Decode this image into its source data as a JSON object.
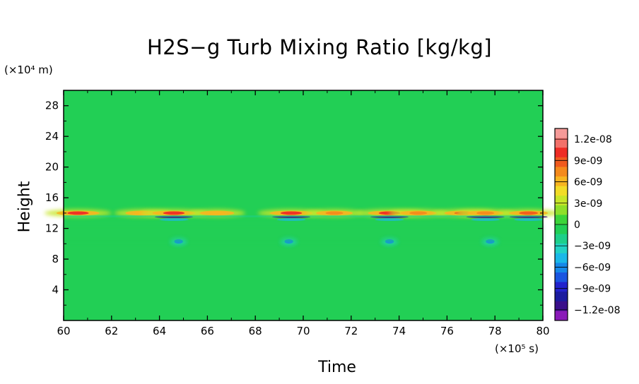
{
  "chart_data": {
    "type": "heatmap",
    "title": "H2S−g Turb Mixing Ratio [kg/kg]",
    "xlabel": "Time",
    "ylabel": "Height",
    "x_unit_label": "(×10⁵ s)",
    "y_unit_label": "(×10⁴ m)",
    "xlim": [
      60,
      80
    ],
    "ylim": [
      0,
      30
    ],
    "x_ticks": [
      "60",
      "62",
      "64",
      "66",
      "68",
      "70",
      "72",
      "74",
      "76",
      "78",
      "80"
    ],
    "y_ticks": [
      "4",
      "8",
      "12",
      "16",
      "20",
      "24",
      "28"
    ],
    "background_value": 0,
    "colorbar": {
      "ticks": [
        {
          "value": 1.2e-08,
          "label": "1.2e-08"
        },
        {
          "value": 9e-09,
          "label": "9e-09"
        },
        {
          "value": 6e-09,
          "label": "6e-09"
        },
        {
          "value": 3e-09,
          "label": "3e-09"
        },
        {
          "value": 0,
          "label": "0"
        },
        {
          "value": -3e-09,
          "label": "−3e-09"
        },
        {
          "value": -6e-09,
          "label": "−6e-09"
        },
        {
          "value": -9e-09,
          "label": "−9e-09"
        },
        {
          "value": -1.2e-08,
          "label": "−1.2e-08"
        }
      ],
      "range": [
        -1.35e-08,
        1.35e-08
      ],
      "colors_top_to_bottom": [
        "#f59a98",
        "#f2716a",
        "#ee2c25",
        "#f05a1e",
        "#f48a1c",
        "#f7b520",
        "#f2dc28",
        "#c8e62a",
        "#8fdf2a",
        "#3cd43a",
        "#22cf55",
        "#1ecf8a",
        "#22d2c4",
        "#1ab8e8",
        "#1588e8",
        "#1a55e0",
        "#2222cc",
        "#1b1b9e",
        "#3a0f8a",
        "#8a1ab8"
      ]
    },
    "features": [
      {
        "kind": "band",
        "height": 14.0,
        "sign": "positive",
        "times": [
          60.6,
          63.3,
          64.6,
          66.4,
          69.5,
          71.3,
          73.6,
          74.8,
          76.7,
          77.6,
          79.4
        ],
        "strength": [
          1.0,
          0.6,
          1.0,
          0.6,
          1.0,
          0.7,
          1.0,
          0.7,
          0.8,
          0.7,
          0.8
        ]
      },
      {
        "kind": "band",
        "height": 13.5,
        "sign": "negative",
        "times": [
          64.6,
          69.5,
          73.6,
          77.6,
          79.4
        ]
      },
      {
        "kind": "blob",
        "height": 10.3,
        "sign": "negative",
        "times": [
          64.8,
          69.4,
          73.6,
          77.8
        ]
      }
    ]
  }
}
